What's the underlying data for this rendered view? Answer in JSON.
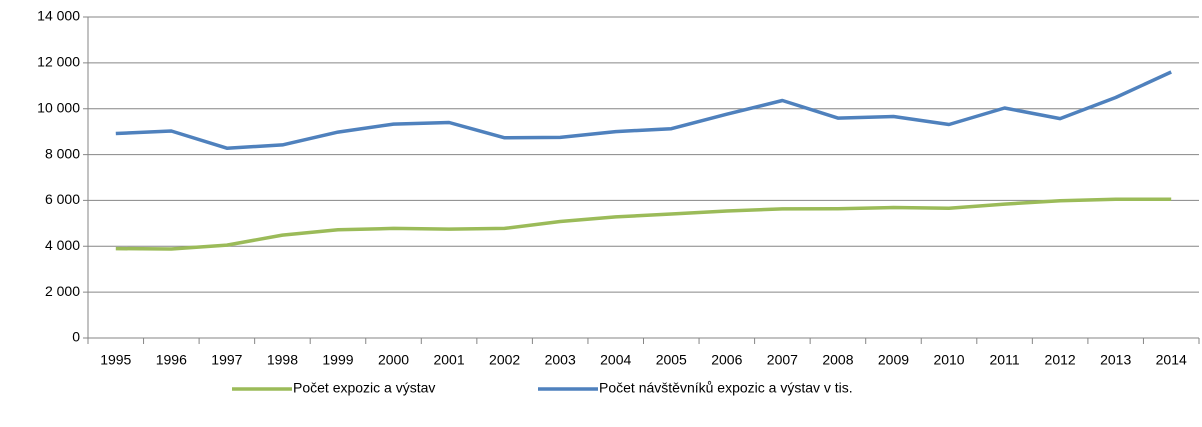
{
  "chart_data": {
    "type": "line",
    "categories": [
      "1995",
      "1996",
      "1997",
      "1998",
      "1999",
      "2000",
      "2001",
      "2002",
      "2003",
      "2004",
      "2005",
      "2006",
      "2007",
      "2008",
      "2009",
      "2010",
      "2011",
      "2012",
      "2013",
      "2014"
    ],
    "series": [
      {
        "name": "Počet expozic a výstav",
        "color": "#9bbb59",
        "values": [
          3900,
          3880,
          4050,
          4490,
          4720,
          4780,
          4750,
          4780,
          5080,
          5280,
          5410,
          5540,
          5630,
          5640,
          5690,
          5660,
          5840,
          5990,
          6050,
          6050
        ]
      },
      {
        "name": "Počet návštěvníků expozic a výstav v tis.",
        "color": "#4f81bd",
        "values": [
          8920,
          9030,
          8280,
          8420,
          8980,
          9330,
          9400,
          8730,
          8750,
          9000,
          9130,
          9760,
          10360,
          9590,
          9660,
          9310,
          10030,
          9570,
          10490,
          11600
        ]
      }
    ],
    "ylim": [
      0,
      14000
    ],
    "yticks": [
      0,
      {
        "value": 2000,
        "label": "2 000"
      },
      {
        "value": 4000,
        "label": "4 000"
      },
      {
        "value": 6000,
        "label": "6 000"
      },
      {
        "value": 8000,
        "label": "8 000"
      },
      {
        "value": 10000,
        "label": "10 000"
      },
      {
        "value": 12000,
        "label": "12 000"
      },
      {
        "value": 14000,
        "label": "14 000"
      }
    ],
    "grid": true
  }
}
